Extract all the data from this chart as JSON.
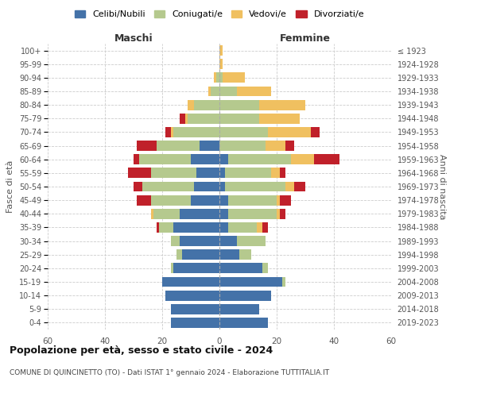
{
  "age_groups": [
    "100+",
    "95-99",
    "90-94",
    "85-89",
    "80-84",
    "75-79",
    "70-74",
    "65-69",
    "60-64",
    "55-59",
    "50-54",
    "45-49",
    "40-44",
    "35-39",
    "30-34",
    "25-29",
    "20-24",
    "15-19",
    "10-14",
    "5-9",
    "0-4"
  ],
  "birth_years": [
    "≤ 1923",
    "1924-1928",
    "1929-1933",
    "1934-1938",
    "1939-1943",
    "1944-1948",
    "1949-1953",
    "1954-1958",
    "1959-1963",
    "1964-1968",
    "1969-1973",
    "1974-1978",
    "1979-1983",
    "1984-1988",
    "1989-1993",
    "1994-1998",
    "1999-2003",
    "2004-2008",
    "2009-2013",
    "2014-2018",
    "2019-2023"
  ],
  "maschi": {
    "celibi": [
      0,
      0,
      0,
      0,
      0,
      0,
      0,
      7,
      10,
      8,
      9,
      10,
      14,
      16,
      14,
      13,
      16,
      20,
      19,
      17,
      17
    ],
    "coniugati": [
      0,
      0,
      1,
      3,
      9,
      11,
      16,
      15,
      18,
      16,
      18,
      14,
      9,
      5,
      3,
      2,
      1,
      0,
      0,
      0,
      0
    ],
    "vedovi": [
      0,
      0,
      1,
      1,
      2,
      1,
      1,
      0,
      0,
      0,
      0,
      0,
      1,
      0,
      0,
      0,
      0,
      0,
      0,
      0,
      0
    ],
    "divorziati": [
      0,
      0,
      0,
      0,
      0,
      2,
      2,
      7,
      2,
      8,
      3,
      5,
      0,
      1,
      0,
      0,
      0,
      0,
      0,
      0,
      0
    ]
  },
  "femmine": {
    "nubili": [
      0,
      0,
      0,
      0,
      0,
      0,
      0,
      0,
      3,
      2,
      2,
      3,
      3,
      3,
      6,
      7,
      15,
      22,
      18,
      14,
      17
    ],
    "coniugate": [
      0,
      0,
      1,
      6,
      14,
      14,
      17,
      16,
      22,
      16,
      21,
      17,
      17,
      10,
      10,
      4,
      2,
      1,
      0,
      0,
      0
    ],
    "vedove": [
      1,
      1,
      8,
      12,
      16,
      14,
      15,
      7,
      8,
      3,
      3,
      1,
      1,
      2,
      0,
      0,
      0,
      0,
      0,
      0,
      0
    ],
    "divorziate": [
      0,
      0,
      0,
      0,
      0,
      0,
      3,
      3,
      9,
      2,
      4,
      4,
      2,
      2,
      0,
      0,
      0,
      0,
      0,
      0,
      0
    ]
  },
  "colors": {
    "celibi": "#4472a8",
    "coniugati": "#b5c98e",
    "vedovi": "#f0c060",
    "divorziati": "#c0202a"
  },
  "title": "Popolazione per età, sesso e stato civile - 2024",
  "subtitle": "COMUNE DI QUINCINETTO (TO) - Dati ISTAT 1° gennaio 2024 - Elaborazione TUTTITALIA.IT",
  "ylabel_left": "Fasce di età",
  "ylabel_right": "Anni di nascita",
  "xlabel_left": "Maschi",
  "xlabel_right": "Femmine",
  "xlim": 60,
  "background_color": "#ffffff",
  "grid_color": "#cccccc"
}
